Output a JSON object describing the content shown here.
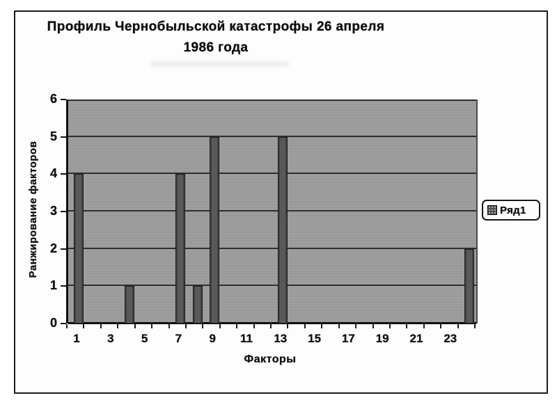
{
  "figure": {
    "title_line1": "Профиль Чернобыльской катастрофы 26 апреля",
    "title_line2": "1986 года"
  },
  "chart_data": {
    "type": "bar",
    "title": "Профиль Чернобыльской катастрофы 26 апреля 1986 года",
    "xlabel": "Факторы",
    "ylabel": "Ранжирование факторов",
    "categories": [
      1,
      2,
      3,
      4,
      5,
      6,
      7,
      8,
      9,
      10,
      11,
      12,
      13,
      14,
      15,
      16,
      17,
      18,
      19,
      20,
      21,
      22,
      23,
      24
    ],
    "values": [
      4,
      0,
      0,
      1,
      0,
      0,
      4,
      1,
      5,
      0,
      0,
      0,
      5,
      0,
      0,
      0,
      0,
      0,
      0,
      0,
      0,
      0,
      0,
      2
    ],
    "series_name": "Ряд1",
    "x_tick_labels": [
      "1",
      "3",
      "5",
      "7",
      "9",
      "11",
      "13",
      "15",
      "17",
      "19",
      "21",
      "23"
    ],
    "y_ticks": [
      0,
      1,
      2,
      3,
      4,
      5,
      6
    ],
    "ylim": [
      0,
      6
    ],
    "grid": "horizontal",
    "legend_position": "right",
    "colors": {
      "plot_background": "#9c9c9c",
      "bar_fill": "#59595c",
      "gridline": "#2e2e2e",
      "text": "#141414",
      "frame_background": "#fdfdfd"
    }
  }
}
